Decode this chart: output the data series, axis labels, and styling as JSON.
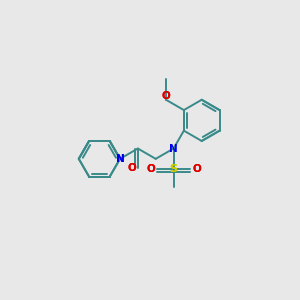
{
  "bg": "#e8e8e8",
  "bc": "#3a8a8a",
  "nc": "#0000ee",
  "oc": "#dd0000",
  "sc": "#cccc00",
  "lw": 1.4,
  "figsize": [
    3.0,
    3.0
  ],
  "dpi": 100,
  "xlim": [
    0,
    10
  ],
  "ylim": [
    0,
    10
  ],
  "bl": 0.7
}
